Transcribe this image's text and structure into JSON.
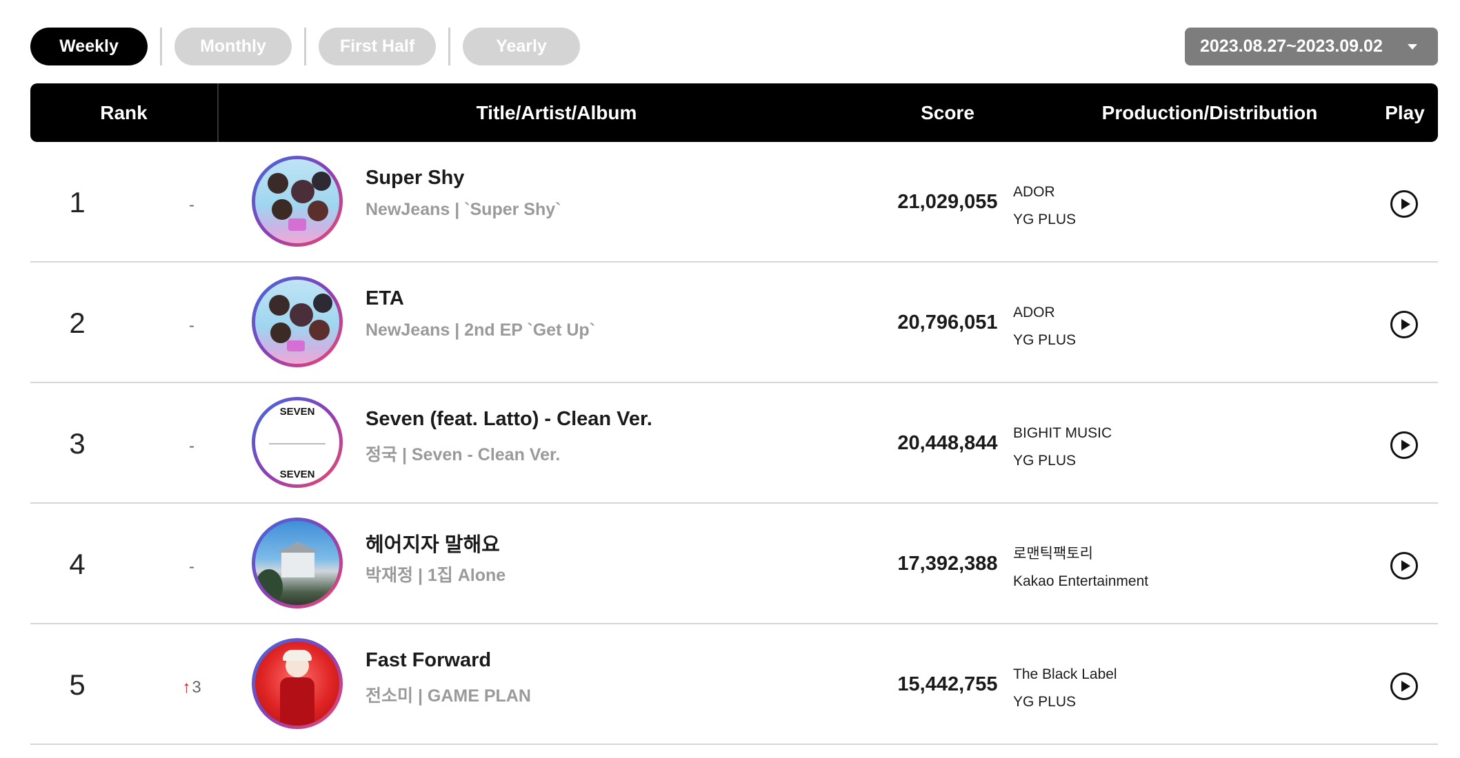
{
  "tabs": [
    {
      "label": "Weekly",
      "active": true
    },
    {
      "label": "Monthly",
      "active": false
    },
    {
      "label": "First Half",
      "active": false
    },
    {
      "label": "Yearly",
      "active": false
    }
  ],
  "date_range": "2023.08.27~2023.09.02",
  "table": {
    "headers": {
      "rank": "Rank",
      "title": "Title/Artist/Album",
      "score": "Score",
      "production": "Production/Distribution",
      "play": "Play"
    },
    "rows": [
      {
        "rank": "1",
        "change": "-",
        "title": "Super Shy",
        "subtitle": "NewJeans | `Super Shy`",
        "score": "21,029,055",
        "production": "ADOR",
        "distribution": "YG PLUS",
        "art": "newjeans"
      },
      {
        "rank": "2",
        "change": "-",
        "title": "ETA",
        "subtitle": "NewJeans | 2nd EP `Get Up`",
        "score": "20,796,051",
        "production": "ADOR",
        "distribution": "YG PLUS",
        "art": "newjeans"
      },
      {
        "rank": "3",
        "change": "-",
        "title": "Seven (feat. Latto) - Clean Ver.",
        "subtitle": "정국 | Seven - Clean Ver.",
        "score": "20,448,844",
        "production": "BIGHIT MUSIC",
        "distribution": "YG PLUS",
        "art": "seven"
      },
      {
        "rank": "4",
        "change": "-",
        "title": "헤어지자 말해요",
        "subtitle": "박재정 | 1집 Alone",
        "score": "17,392,388",
        "production": "로맨틱팩토리",
        "distribution": "Kakao Entertainment",
        "art": "house"
      },
      {
        "rank": "5",
        "change": "3",
        "change_dir": "up",
        "title": "Fast Forward",
        "subtitle": "전소미 | GAME PLAN",
        "score": "15,442,755",
        "production": "The Black Label",
        "distribution": "YG PLUS",
        "art": "red"
      }
    ]
  },
  "art_text": {
    "seven_top": "SEVEN",
    "seven_bottom": "SEVEN"
  },
  "colors": {
    "header_bg": "#000000",
    "tab_inactive": "#d4d4d4",
    "date_bg": "#7d7d7d",
    "rank_up": "#d11a1a"
  }
}
